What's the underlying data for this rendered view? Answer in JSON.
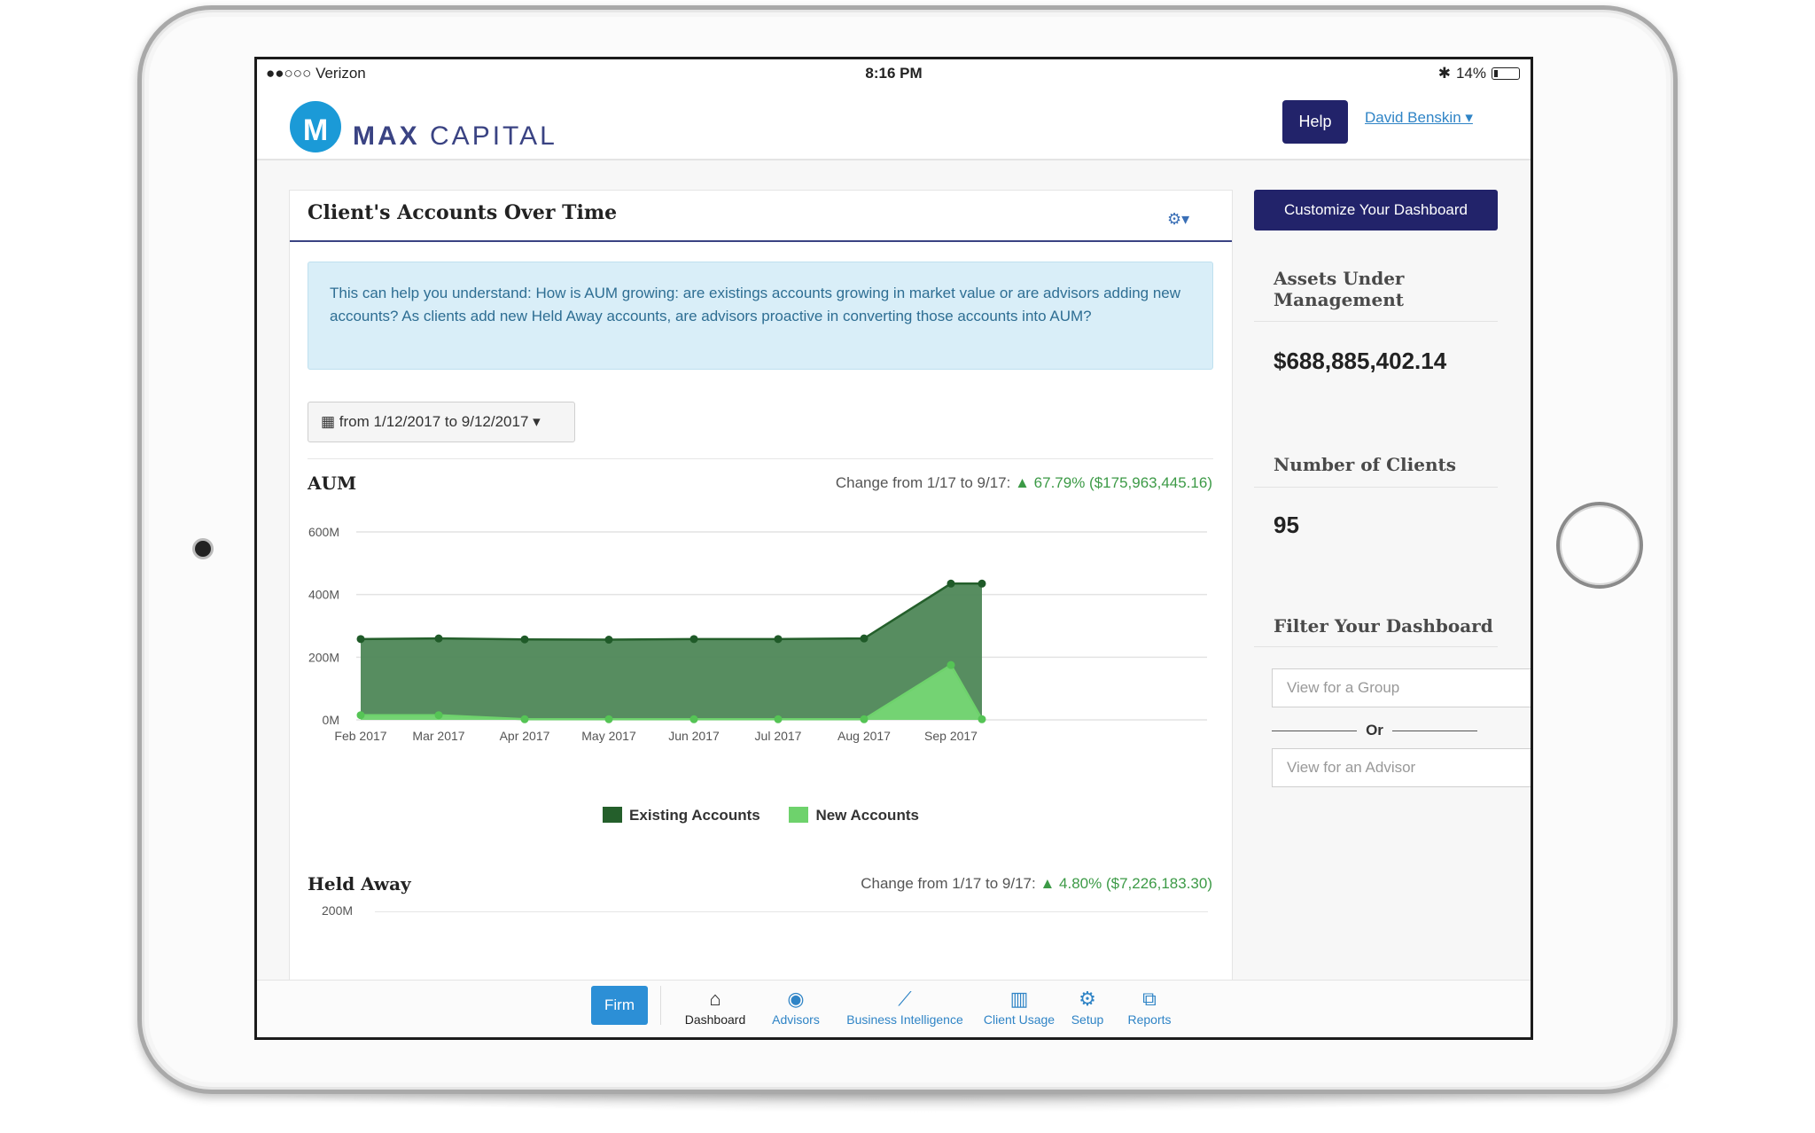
{
  "status": {
    "carrier": "●●○○○ Verizon",
    "time": "8:16 PM",
    "battery": "14%"
  },
  "nav": {
    "brand_bold": "MAX",
    "brand_light": "CAPITAL",
    "logo_letter": "M",
    "help": "Help",
    "user": "David Benskin ▾"
  },
  "card": {
    "title": "Client's Accounts Over Time",
    "gear": "⚙▾",
    "info": "This can help you understand: How is AUM growing: are existings accounts growing in market value or are advisors adding new accounts? As clients add new Held Away accounts, are advisors proactive in converting those accounts into AUM?",
    "date_range": "from 1/12/2017 to 9/12/2017 ▾",
    "aum_title": "AUM",
    "aum_change_prefix": "Change from 1/17 to 9/17:",
    "aum_change_value": "▲ 67.79% ($175,963,445.16)",
    "held_title": "Held Away",
    "held_change_prefix": "Change from 1/17 to 9/17:",
    "held_change_value": "▲ 4.80% ($7,226,183.30)",
    "held_tick": "200M"
  },
  "chart_data": {
    "type": "area",
    "x": [
      "Feb 2017",
      "Mar 2017",
      "Apr 2017",
      "May 2017",
      "Jun 2017",
      "Jul 2017",
      "Aug 2017",
      "Sep 2017",
      "Sep 2017"
    ],
    "xticks": [
      "Feb 2017",
      "Mar 2017",
      "Apr 2017",
      "May 2017",
      "Jun 2017",
      "Jul 2017",
      "Aug 2017",
      "Sep 2017"
    ],
    "yticks": [
      "0M",
      "200M",
      "400M",
      "600M"
    ],
    "ylim": [
      0,
      600
    ],
    "series": [
      {
        "name": "Existing Accounts",
        "color": "#245f2b",
        "values": [
          258,
          260,
          257,
          256,
          258,
          258,
          260,
          435,
          435
        ]
      },
      {
        "name": "New Accounts",
        "color": "#6ed26c",
        "values": [
          15,
          15,
          2,
          2,
          2,
          2,
          2,
          175,
          2
        ]
      }
    ],
    "grid": true,
    "legend": "bottom"
  },
  "sidebar": {
    "customize": "Customize Your Dashboard",
    "aum_label_1": "Assets Under",
    "aum_label_2": "Management",
    "aum_value": "$688,885,402.14",
    "clients_label": "Number of Clients",
    "clients_value": "95",
    "filter_label": "Filter Your Dashboard",
    "group_placeholder": "View for a Group",
    "or": "Or",
    "advisor_placeholder": "View for an Advisor"
  },
  "tabs": {
    "firm": "Firm",
    "items": [
      {
        "label": "Dashboard",
        "icon": "home-icon"
      },
      {
        "label": "Advisors",
        "icon": "user-circle-icon"
      },
      {
        "label": "Business Intelligence",
        "icon": "line-chart-icon"
      },
      {
        "label": "Client Usage",
        "icon": "bar-chart-icon"
      },
      {
        "label": "Setup",
        "icon": "gear-icon"
      },
      {
        "label": "Reports",
        "icon": "copy-icon"
      }
    ]
  }
}
